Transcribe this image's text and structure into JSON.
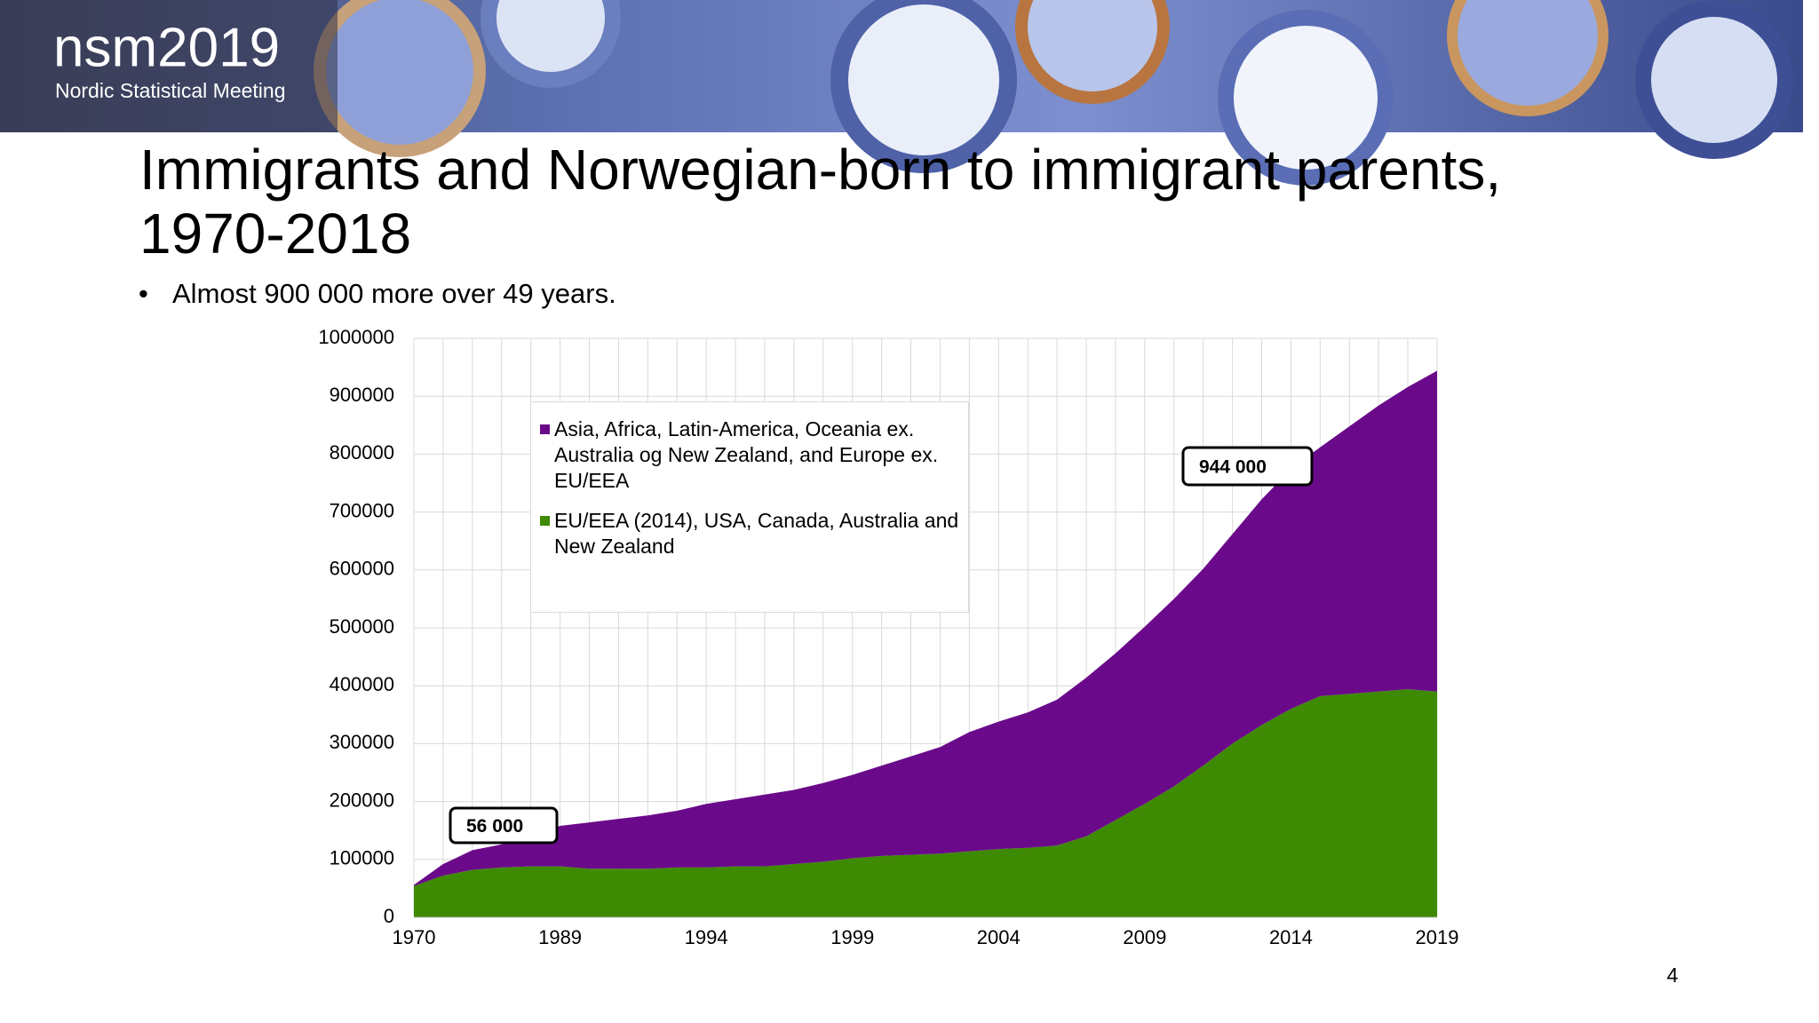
{
  "slide": {
    "logo": "nsm2019",
    "logo_subtitle": "Nordic Statistical Meeting",
    "title_line1": "Immigrants and Norwegian-born to immigrant parents,",
    "title_line2": "1970-2018",
    "bullet": "Almost 900 000 more over 49 years.",
    "page_number": "4"
  },
  "chart_data": {
    "type": "stacked_area",
    "categories": [
      "1970",
      null,
      null,
      null,
      null,
      "1989",
      null,
      null,
      null,
      null,
      "1994",
      null,
      null,
      null,
      null,
      "1999",
      null,
      null,
      null,
      null,
      "2004",
      null,
      null,
      null,
      null,
      "2009",
      null,
      null,
      null,
      null,
      "2014",
      null,
      null,
      null,
      null,
      "2019"
    ],
    "series": [
      {
        "name": "EU/EEA (2014), USA, Canada, Australia and New Zealand",
        "color": "#3e8a02",
        "values": [
          54000,
          72000,
          82000,
          86000,
          88000,
          88000,
          84000,
          84000,
          84000,
          86000,
          86000,
          88000,
          88000,
          92000,
          96000,
          102000,
          106000,
          108000,
          110000,
          114000,
          118000,
          120000,
          124000,
          140000,
          168000,
          196000,
          226000,
          262000,
          300000,
          332000,
          360000,
          382000,
          386000,
          390000,
          394000,
          390000
        ]
      },
      {
        "name": "Asia, Africa, Latin-America, Oceania ex. Australia og New Zealand, and Europe ex. EU/EEA",
        "color": "#6a0a8a",
        "values": [
          2000,
          20000,
          34000,
          40000,
          50000,
          70000,
          80000,
          86000,
          92000,
          98000,
          110000,
          116000,
          124000,
          128000,
          136000,
          144000,
          156000,
          170000,
          184000,
          206000,
          220000,
          234000,
          252000,
          274000,
          288000,
          306000,
          324000,
          340000,
          362000,
          390000,
          414000,
          430000,
          462000,
          494000,
          522000,
          554000
        ]
      }
    ],
    "ylim": [
      0,
      1000000
    ],
    "yticks": [
      0,
      100000,
      200000,
      300000,
      400000,
      500000,
      600000,
      700000,
      800000,
      900000,
      1000000
    ],
    "grid": true,
    "annotations": [
      "56 000",
      "944 000"
    ]
  }
}
